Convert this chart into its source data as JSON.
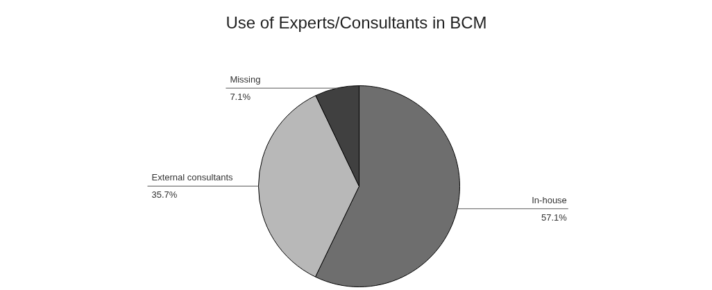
{
  "chart_data": {
    "type": "pie",
    "title": "Use of Experts/Consultants in BCM",
    "categories": [
      "In-house",
      "External consultants",
      "Missing"
    ],
    "values": [
      57.1,
      35.7,
      7.1
    ],
    "value_labels": [
      "57.1%",
      "35.7%",
      "7.1%"
    ],
    "colors": [
      "#6e6e6e",
      "#b8b8b8",
      "#404040"
    ]
  }
}
